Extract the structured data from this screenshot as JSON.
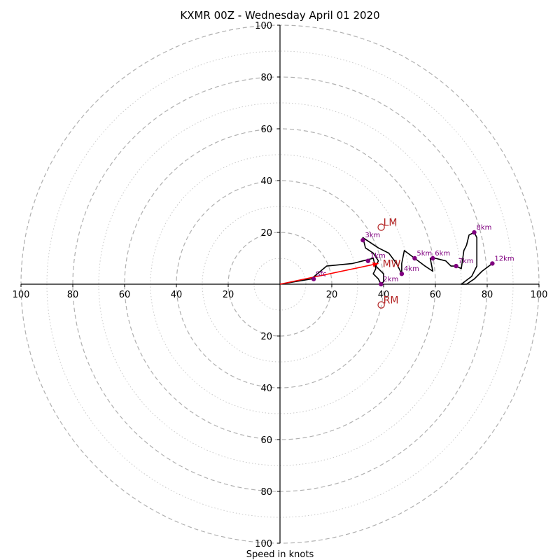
{
  "chart_data": {
    "type": "hodograph",
    "title": "KXMR 00Z - Wednesday April 01 2020",
    "xlabel": "Speed in knots",
    "rlim": [
      0,
      100
    ],
    "major_rings": [
      20,
      40,
      60,
      80,
      100
    ],
    "minor_rings": [
      10,
      30,
      50,
      70,
      90
    ],
    "ticks": {
      "left": [
        "100",
        "80",
        "60",
        "40",
        "20"
      ],
      "right": [
        "20",
        "40",
        "60",
        "80",
        "100"
      ],
      "up": [
        "20",
        "40",
        "60",
        "80",
        "100"
      ],
      "down": [
        "20",
        "40",
        "60",
        "80",
        "100"
      ]
    },
    "trace": [
      [
        0,
        0
      ],
      [
        12,
        2
      ],
      [
        18,
        7
      ],
      [
        28,
        8
      ],
      [
        32,
        9
      ],
      [
        36,
        10
      ],
      [
        37,
        6
      ],
      [
        36,
        4
      ],
      [
        38,
        2
      ],
      [
        39,
        0
      ],
      [
        40,
        1
      ],
      [
        40,
        4
      ],
      [
        37,
        7
      ],
      [
        38,
        9
      ],
      [
        36,
        12
      ],
      [
        33,
        14
      ],
      [
        32,
        18
      ],
      [
        35,
        16
      ],
      [
        38,
        14
      ],
      [
        42,
        12
      ],
      [
        45,
        8
      ],
      [
        47,
        4
      ],
      [
        47,
        8
      ],
      [
        48,
        13
      ],
      [
        52,
        10
      ],
      [
        56,
        7
      ],
      [
        59,
        5
      ],
      [
        58,
        10
      ],
      [
        60,
        10
      ],
      [
        64,
        9
      ],
      [
        66,
        7
      ],
      [
        68,
        7
      ],
      [
        70,
        6
      ],
      [
        71,
        13
      ],
      [
        72,
        15
      ],
      [
        73,
        19
      ],
      [
        75,
        20
      ],
      [
        76,
        18
      ],
      [
        76,
        12
      ],
      [
        76,
        7
      ],
      [
        74,
        3
      ],
      [
        70,
        0
      ],
      [
        72,
        0
      ],
      [
        75,
        2
      ],
      [
        78,
        5
      ],
      [
        82,
        8
      ]
    ],
    "height_markers": [
      {
        "label": "Sfc",
        "x": 13,
        "y": 2
      },
      {
        "label": "1km",
        "x": 34,
        "y": 9
      },
      {
        "label": "2km",
        "x": 39,
        "y": 0
      },
      {
        "label": "3km",
        "x": 32,
        "y": 17
      },
      {
        "label": "4km",
        "x": 47,
        "y": 4
      },
      {
        "label": "5km",
        "x": 52,
        "y": 10
      },
      {
        "label": "6km",
        "x": 59,
        "y": 10
      },
      {
        "label": "7km",
        "x": 68,
        "y": 7
      },
      {
        "label": "8km",
        "x": 75,
        "y": 20
      },
      {
        "label": "12km",
        "x": 82,
        "y": 8
      }
    ],
    "motion_markers": [
      {
        "label": "LM",
        "x": 38,
        "y": 22
      },
      {
        "label": "MW",
        "x": 38,
        "y": 8
      },
      {
        "label": "RM",
        "x": 38,
        "y": -8
      }
    ],
    "mean_wind_vector": {
      "x": 38,
      "y": 8
    },
    "colors": {
      "trace": "#000000",
      "height_marker": "#800080",
      "motion_marker": "#b22222",
      "mean_wind": "#ff0000",
      "major_ring": "#b0b0b0",
      "minor_ring": "#c8c8c8",
      "axes": "#000000"
    }
  }
}
